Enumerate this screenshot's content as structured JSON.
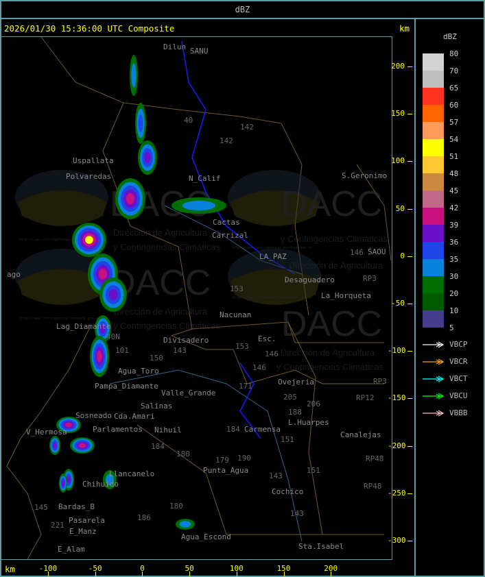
{
  "header": {
    "title": "dBZ"
  },
  "panel": {
    "timestamp_title": "2026/01/30 15:36:00 UTC Composite",
    "y_unit": "km",
    "x_unit": "km"
  },
  "axes": {
    "y_ticks": [
      "200",
      "150",
      "100",
      "50",
      "0",
      "-50",
      "-100",
      "-150",
      "-200",
      "-250",
      "-300"
    ],
    "x_ticks": [
      "-100",
      "-50",
      "0",
      "50",
      "100",
      "150",
      "200"
    ],
    "tick_color": "#ffff00"
  },
  "legend": {
    "title": "dBZ",
    "labels": [
      "80",
      "70",
      "65",
      "60",
      "57",
      "54",
      "51",
      "48",
      "45",
      "42",
      "39",
      "36",
      "35",
      "30",
      "20",
      "10",
      "5"
    ],
    "colors": [
      "#d3d3d3",
      "#bebebe",
      "#ff3220",
      "#ff6400",
      "#ff9b5a",
      "#ffff00",
      "#ffc832",
      "#cd883f",
      "#bf6888",
      "#c8107e",
      "#6a10c8",
      "#1e46e6",
      "#0a82dc",
      "#006e00",
      "#005a00",
      "#463c8c"
    ],
    "radars": [
      {
        "name": "VBCP",
        "color": "#ffffff"
      },
      {
        "name": "VBCR",
        "color": "#ffa500"
      },
      {
        "name": "VBCT",
        "color": "#00ffff"
      },
      {
        "name": "VBCU",
        "color": "#00ff00"
      },
      {
        "name": "VBBB",
        "color": "#ffc0cb"
      }
    ]
  },
  "watermark": {
    "logo_text": "DACC",
    "line1": "Dirección de Agricultura",
    "line2": "y Contingencias Climáticas",
    "url": "http://www.contingencias.mendoza.gov.ar"
  },
  "places": [
    "Dilun",
    "SANU",
    "Uspallata",
    "Polvaredas",
    "N_Calif",
    "Carrizal",
    "Cactas",
    "S.Geronimo",
    "SAOU",
    "Desaguadero",
    "LA_PAZ",
    "Nacunan",
    "La_Horqueta",
    "Esc.",
    "Divisadero",
    "Lag_Diamante",
    "Agua_Toro",
    "Pampa_Diamante",
    "Salinas",
    "Cda.Amari",
    "Parlamentos",
    "Sosneado",
    "V_Hermosa",
    "Nihuil",
    "Valle_Grande",
    "Ovejeria",
    "L.Huarpes",
    "Carmensa",
    "Canalejas",
    "Punta_Agua",
    "Llancanelo",
    "Chihuido",
    "Bardas_B",
    "Cochico",
    "Agua_Escond",
    "E_Manz",
    "E_Alam",
    "Pasarela",
    "Sta.Isabel",
    "ago"
  ],
  "routes": [
    "40",
    "142",
    "142",
    "153",
    "146",
    "143",
    "40N",
    "101",
    "150",
    "153",
    "146",
    "171",
    "205",
    "206",
    "188",
    "151",
    "184",
    "180",
    "184",
    "179",
    "190",
    "151",
    "143",
    "143",
    "180",
    "186",
    "145",
    "221",
    "RP3",
    "RP3",
    "RP12",
    "RP48",
    "RP48",
    "146"
  ]
}
